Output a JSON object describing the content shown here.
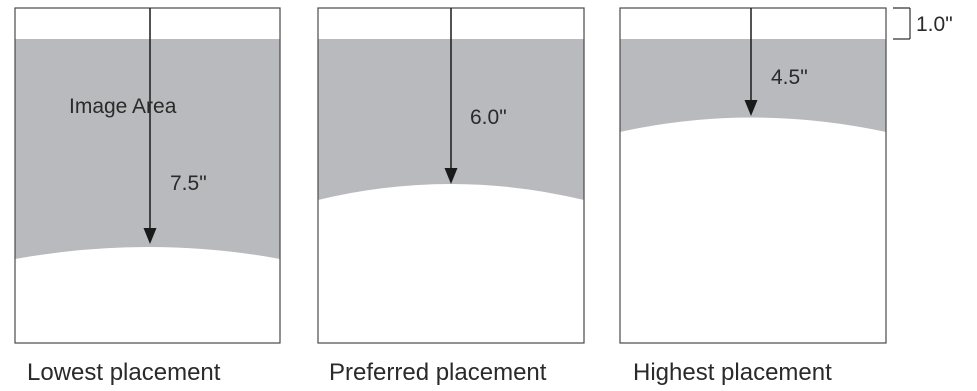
{
  "panels": [
    {
      "caption": "Lowest placement",
      "measurement": "7.5\"",
      "area_label": "Image Area",
      "shade_color": "#b9babd"
    },
    {
      "caption": "Preferred placement",
      "measurement": "6.0\"",
      "shade_color": "#b9babd"
    },
    {
      "caption": "Highest placement",
      "measurement": "4.5\"",
      "shade_color": "#b9babd"
    }
  ],
  "top_margin_label": "1.0\""
}
